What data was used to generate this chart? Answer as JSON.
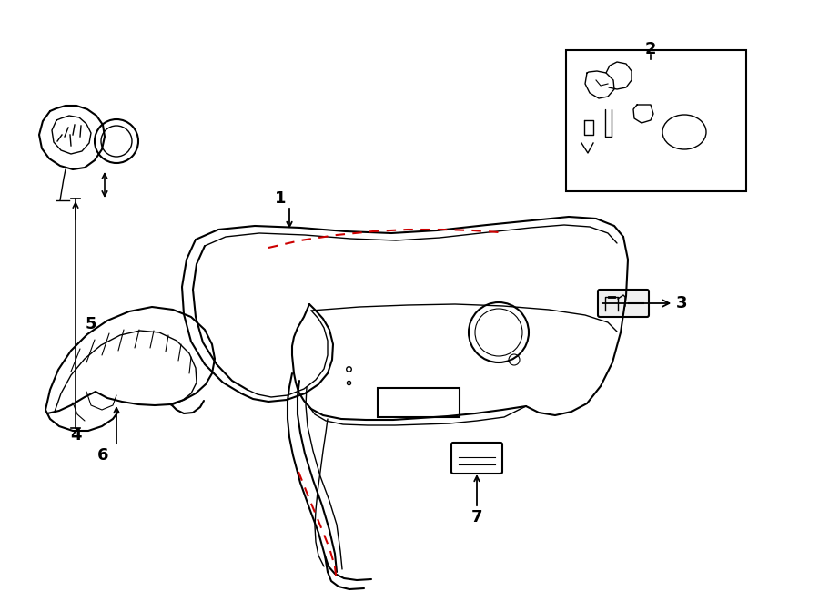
{
  "bg_color": "#ffffff",
  "line_color": "#000000",
  "red_dash_color": "#cc0000",
  "label_color": "#000000",
  "lw_main": 1.5,
  "lw_thin": 1.0
}
